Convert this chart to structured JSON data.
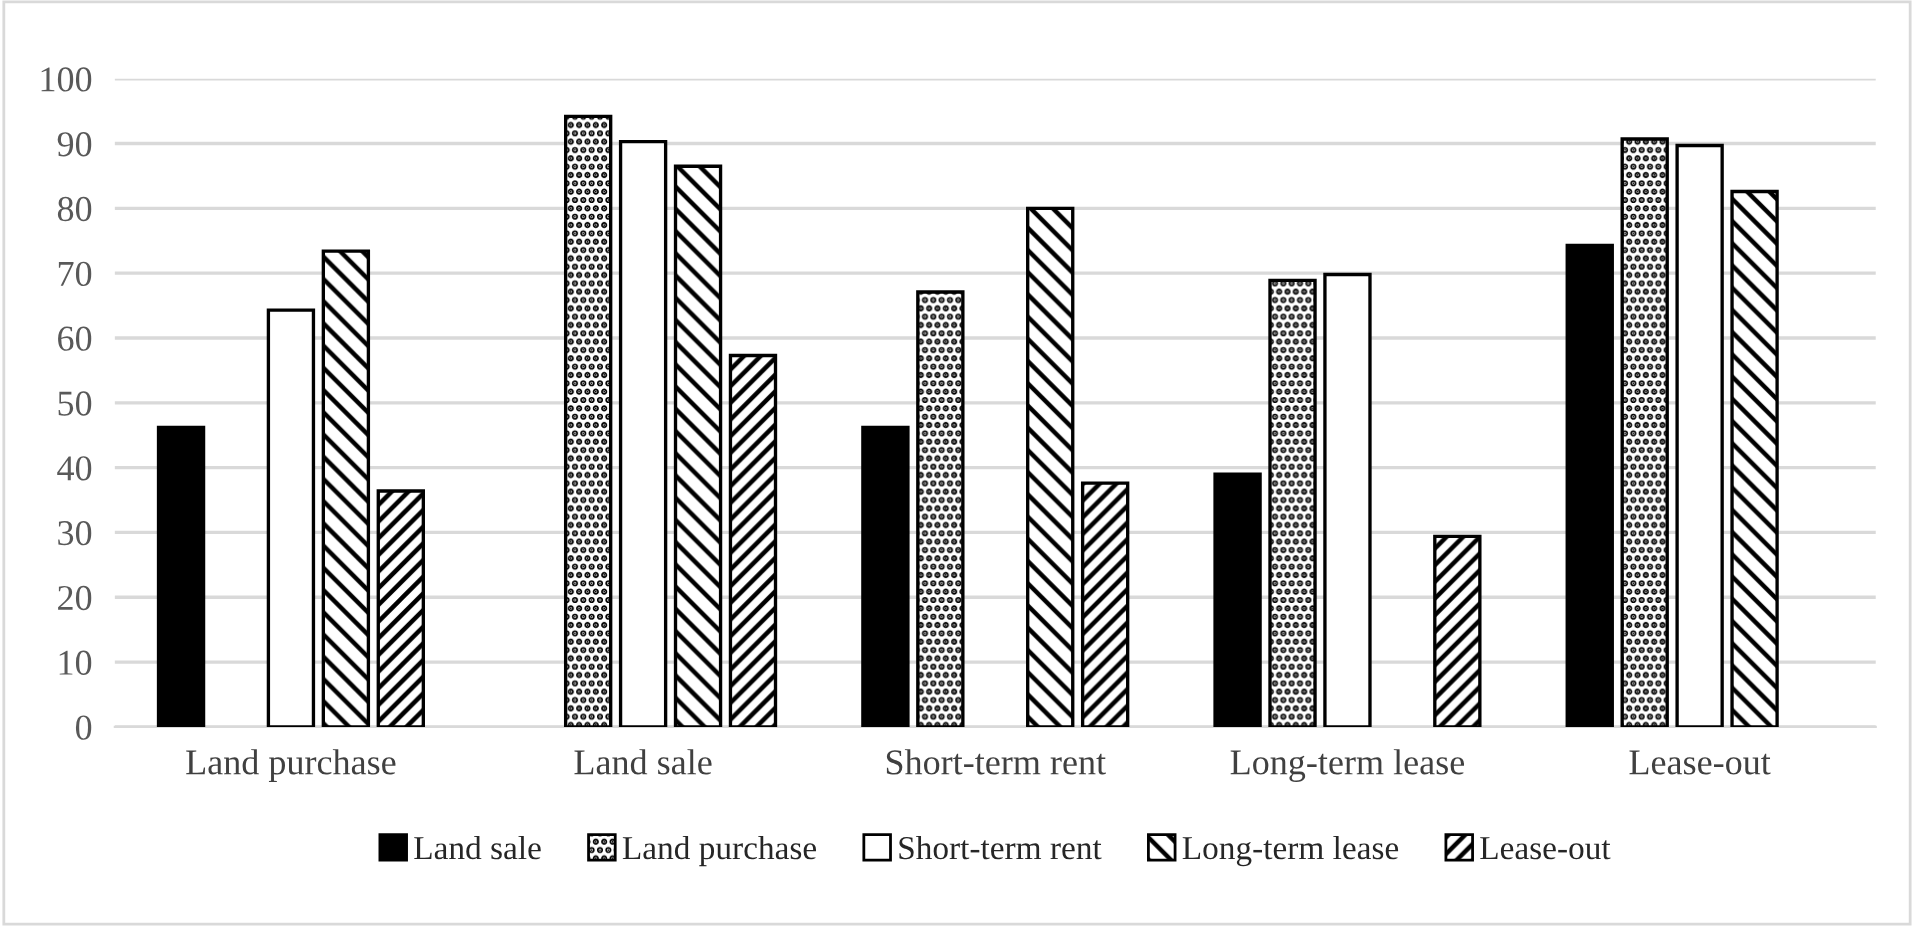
{
  "chart_data": {
    "type": "bar",
    "categories": [
      "Land purchase",
      "Land sale",
      "Short-term rent",
      "Long-term lease",
      "Lease-out"
    ],
    "series": [
      {
        "name": "Land sale",
        "color": "#000000",
        "values": [
          46.2,
          null,
          46.2,
          39.0,
          74.3
        ]
      },
      {
        "name": "Land purchase",
        "color": "#000000",
        "values": [
          null,
          94.2,
          67.1,
          68.9,
          90.7
        ]
      },
      {
        "name": "Short-term rent",
        "color": "#ffffff",
        "values": [
          64.3,
          90.3,
          null,
          69.8,
          89.7
        ]
      },
      {
        "name": "Long-term lease",
        "color": "#000000",
        "values": [
          73.4,
          86.5,
          80.0,
          null,
          82.6
        ]
      },
      {
        "name": "Lease-out",
        "color": "#000000",
        "values": [
          36.4,
          57.3,
          37.6,
          29.4,
          null
        ]
      }
    ],
    "ylim": [
      0,
      100
    ],
    "yticks": [
      0,
      10,
      20,
      30,
      40,
      50,
      60,
      70,
      80,
      90,
      100
    ],
    "grid": "y",
    "legend": "bottom"
  }
}
